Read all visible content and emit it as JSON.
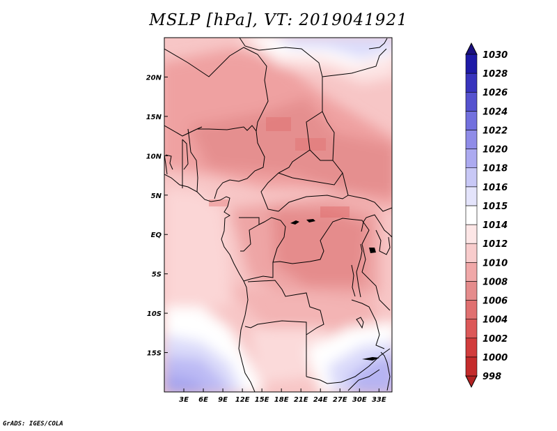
{
  "title": "MSLP [hPa], VT: 2019041921",
  "credit": "GrADS: IGES/COLA",
  "map": {
    "lon_range": [
      0,
      35
    ],
    "lat_range": [
      -20,
      25
    ],
    "lon_ticks": [
      {
        "value": 3,
        "label": "3E"
      },
      {
        "value": 6,
        "label": "6E"
      },
      {
        "value": 9,
        "label": "9E"
      },
      {
        "value": 12,
        "label": "12E"
      },
      {
        "value": 15,
        "label": "15E"
      },
      {
        "value": 18,
        "label": "18E"
      },
      {
        "value": 21,
        "label": "21E"
      },
      {
        "value": 24,
        "label": "24E"
      },
      {
        "value": 27,
        "label": "27E"
      },
      {
        "value": 30,
        "label": "30E"
      },
      {
        "value": 33,
        "label": "33E"
      }
    ],
    "lat_ticks": [
      {
        "value": 20,
        "label": "20N"
      },
      {
        "value": 15,
        "label": "15N"
      },
      {
        "value": 10,
        "label": "10N"
      },
      {
        "value": 5,
        "label": "5N"
      },
      {
        "value": 0,
        "label": "EQ"
      },
      {
        "value": -5,
        "label": "5S"
      },
      {
        "value": -10,
        "label": "10S"
      },
      {
        "value": -15,
        "label": "15S"
      }
    ],
    "pressure_regions": [
      {
        "level": "1014",
        "desc": "broad white band across south Atlantic"
      },
      {
        "level": "1008",
        "desc": "Sahel low"
      },
      {
        "level": "1008",
        "desc": "Congo basin low"
      }
    ]
  },
  "colorbar": {
    "levels": [
      "998",
      "1000",
      "1002",
      "1004",
      "1006",
      "1008",
      "1010",
      "1012",
      "1014",
      "1015",
      "1016",
      "1018",
      "1020",
      "1022",
      "1024",
      "1026",
      "1028",
      "1030"
    ],
    "colors": [
      "#b22222",
      "#c42b2b",
      "#d13c3c",
      "#dc5858",
      "#e07070",
      "#e58c8c",
      "#f0a8a8",
      "#f8cccc",
      "#fde6e6",
      "#ffffff",
      "#e4e4fb",
      "#c8c8f6",
      "#acaaf0",
      "#8f8ce8",
      "#7270de",
      "#5552cf",
      "#3834bd",
      "#1e1aa6",
      "#1a1080"
    ]
  }
}
